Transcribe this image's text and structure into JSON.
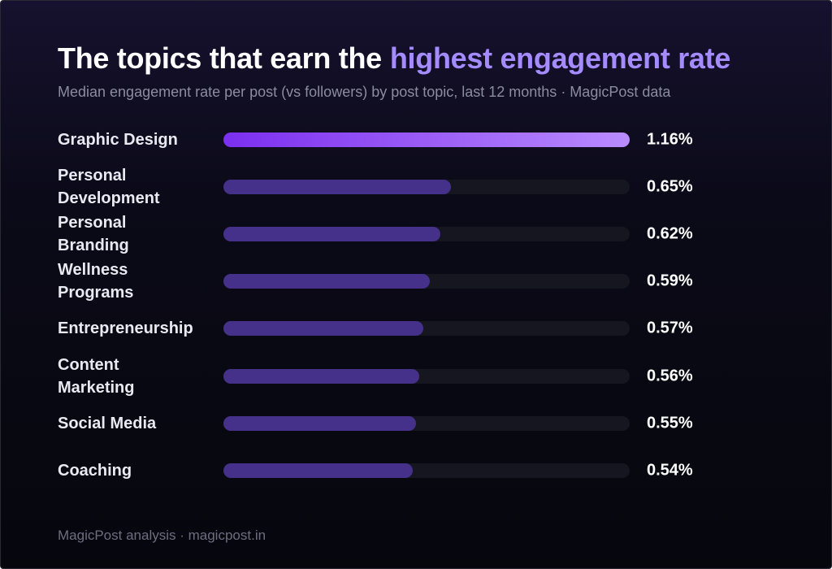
{
  "chart_data": {
    "type": "bar",
    "orientation": "horizontal",
    "title": "The topics that earn the",
    "title_highlight": "highest engagement rate",
    "subtitle": "Median engagement rate per post (vs followers) by post topic, last 12 months · MagicPost data",
    "categories": [
      "Graphic Design",
      "Personal Development",
      "Personal Branding",
      "Wellness Programs",
      "Entrepreneurship",
      "Content Marketing",
      "Social Media",
      "Coaching"
    ],
    "values": [
      1.16,
      0.65,
      0.62,
      0.59,
      0.57,
      0.56,
      0.55,
      0.54
    ],
    "value_labels": [
      "1.16%",
      "0.65%",
      "0.62%",
      "0.59%",
      "0.57%",
      "0.56%",
      "0.55%",
      "0.54%"
    ],
    "colors": [
      "#9b5cf6",
      "#45318a",
      "#45318a",
      "#45318a",
      "#45318a",
      "#45318a",
      "#45318a",
      "#45318a"
    ],
    "xlim": [
      0,
      1.16
    ],
    "footer": "MagicPost analysis · magicpost.in"
  }
}
